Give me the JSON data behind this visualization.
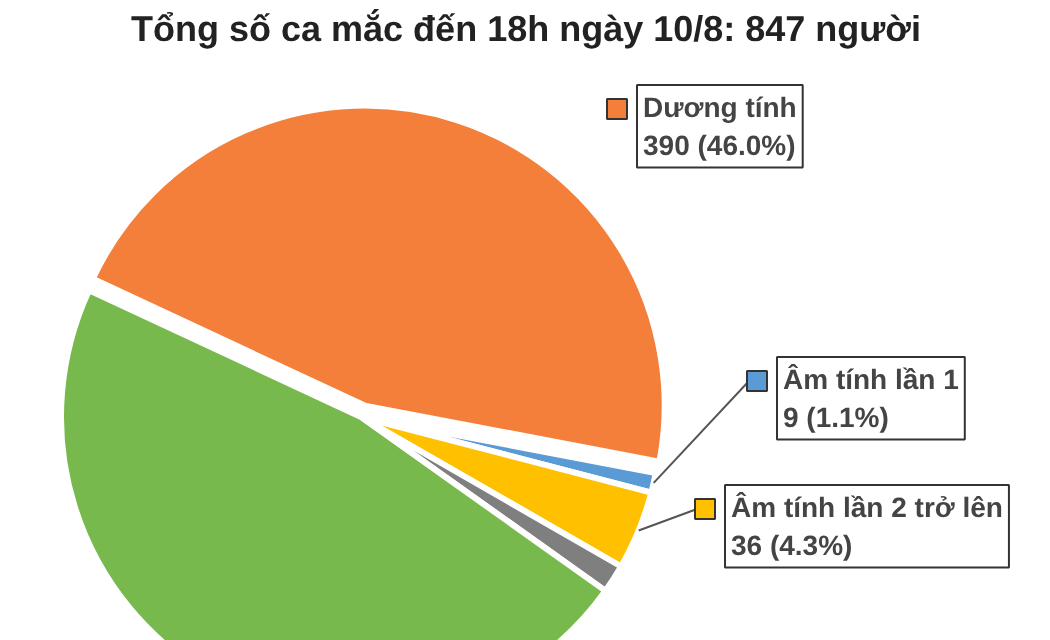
{
  "chart_data": {
    "type": "pie",
    "title": "Tổng số ca mắc đến 18h ngày 10/8: 847 người",
    "categories": [
      "Dương tính",
      "Âm tính lần 1",
      "Âm tính lần 2 trở lên",
      null,
      null
    ],
    "values": [
      390,
      9,
      36,
      13,
      399
    ],
    "colors": [
      "#f47f3a",
      "#5b9bd5",
      "#ffc000",
      "#7f7f7f",
      "#77b94c"
    ],
    "value_labels": [
      "390 (46.0%)",
      "9 (1.1%)",
      "36 (4.3%)",
      null,
      null
    ],
    "legend": "right"
  }
}
